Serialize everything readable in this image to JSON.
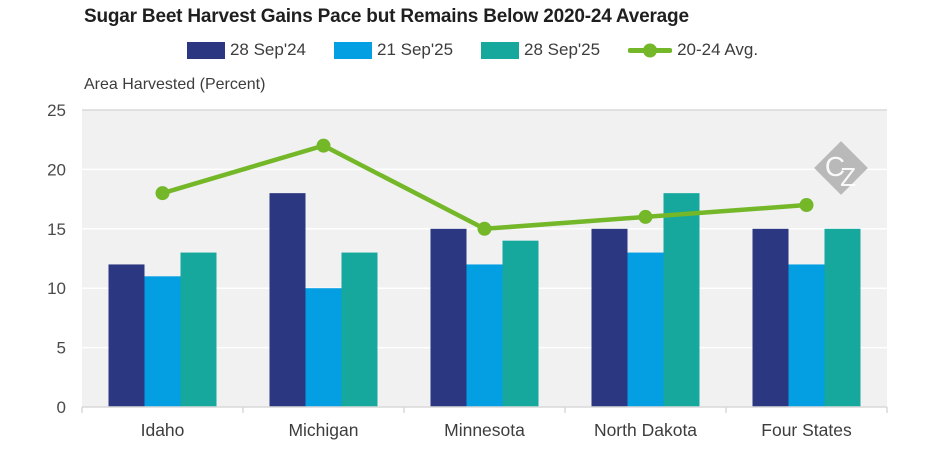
{
  "title": "Sugar Beet Harvest Gains Pace but Remains Below 2020-24 Average",
  "watermark": {
    "letter_c": "C",
    "letter_z": "Z"
  },
  "colors": {
    "navy": "#2b3781",
    "light_blue": "#049ee2",
    "teal": "#16a89d",
    "green": "#74b82a",
    "panel_bg": "#f1f1f1",
    "gridline": "#ffffff",
    "axis_line": "#d9d9d9",
    "title_text": "#1f1f1f",
    "tick_text": "#4a4a4a",
    "watermark_gray": "#b9b9b9"
  },
  "chart_data": {
    "type": "bar",
    "title": "Sugar Beet Harvest Gains Pace but Remains Below 2020-24 Average",
    "xlabel": "",
    "ylabel": "Area Harvested (Percent)",
    "ylim": [
      0,
      25
    ],
    "yticks": [
      0,
      5,
      10,
      15,
      20,
      25
    ],
    "grid": true,
    "legend_position": "top",
    "categories": [
      "Idaho",
      "Michigan",
      "Minnesota",
      "North Dakota",
      "Four States"
    ],
    "series": [
      {
        "name": "28 Sep'24",
        "type": "bar",
        "color": "#2b3781",
        "values": [
          12,
          18,
          15,
          15,
          15
        ]
      },
      {
        "name": "21 Sep'25",
        "type": "bar",
        "color": "#049ee2",
        "values": [
          11,
          10,
          12,
          13,
          12
        ]
      },
      {
        "name": "28 Sep'25",
        "type": "bar",
        "color": "#16a89d",
        "values": [
          13,
          13,
          14,
          18,
          15
        ]
      },
      {
        "name": "20-24 Avg.",
        "type": "line",
        "color": "#74b82a",
        "values": [
          18,
          22,
          15,
          16,
          17
        ]
      }
    ]
  }
}
